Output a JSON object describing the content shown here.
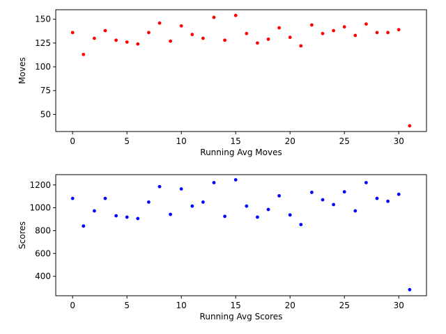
{
  "chart_data": [
    {
      "type": "scatter",
      "xlabel": "Running Avg Moves",
      "ylabel": "Moves",
      "xlim": [
        -1.55,
        32.55
      ],
      "ylim": [
        32,
        160
      ],
      "xticks": [
        0,
        5,
        10,
        15,
        20,
        25,
        30
      ],
      "yticks": [
        50,
        75,
        100,
        125,
        150
      ],
      "color": "#ff0000",
      "series": [
        {
          "x": [
            0,
            1,
            2,
            3,
            4,
            5,
            6,
            7,
            8,
            9,
            10,
            11,
            12,
            13,
            14,
            15,
            16,
            17,
            18,
            19,
            20,
            21,
            22,
            23,
            24,
            25,
            26,
            27,
            28,
            29,
            30,
            31
          ],
          "y": [
            136,
            113,
            130,
            138,
            128,
            126,
            124,
            136,
            146,
            127,
            143,
            134,
            130,
            152,
            128,
            154,
            135,
            125,
            129,
            141,
            131,
            122,
            144,
            135,
            138,
            142,
            133,
            145,
            136,
            136,
            139,
            38
          ]
        }
      ]
    },
    {
      "type": "scatter",
      "xlabel": "Running Avg Scores",
      "ylabel": "Scores",
      "xlim": [
        -1.55,
        32.55
      ],
      "ylim": [
        230,
        1290
      ],
      "xticks": [
        0,
        5,
        10,
        15,
        20,
        25,
        30
      ],
      "yticks": [
        400,
        600,
        800,
        1000,
        1200
      ],
      "color": "#0000ff",
      "series": [
        {
          "x": [
            0,
            1,
            2,
            3,
            4,
            5,
            6,
            7,
            8,
            9,
            10,
            11,
            12,
            13,
            14,
            15,
            16,
            17,
            18,
            19,
            20,
            21,
            22,
            23,
            24,
            25,
            26,
            27,
            28,
            29,
            30,
            31
          ],
          "y": [
            1082,
            840,
            973,
            1082,
            930,
            918,
            906,
            1050,
            1185,
            942,
            1165,
            1015,
            1050,
            1220,
            925,
            1245,
            1015,
            918,
            985,
            1105,
            937,
            853,
            1135,
            1070,
            1028,
            1140,
            973,
            1220,
            1082,
            1057,
            1118,
            283
          ]
        }
      ]
    }
  ]
}
